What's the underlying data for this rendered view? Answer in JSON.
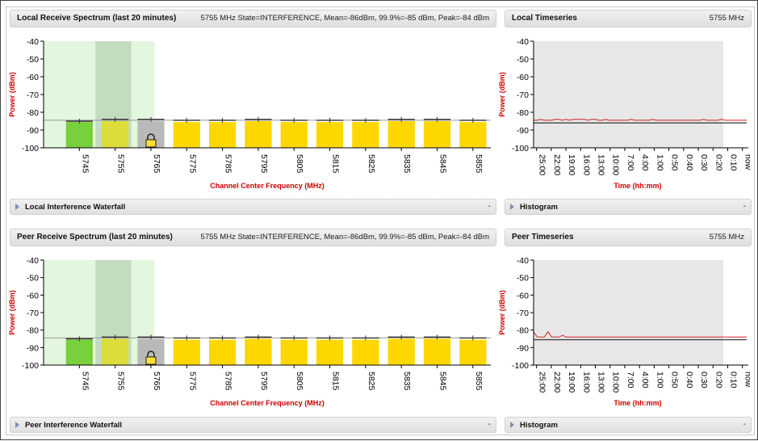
{
  "local": {
    "spectrum": {
      "title": "Local Receive Spectrum (last 20 minutes)",
      "stats": "5755 MHz State=INTERFERENCE, Mean=-86dBm, 99.9%=-85 dBm, Peak=-84 dBm"
    },
    "timeseries": {
      "title": "Local Timeseries",
      "freq": "5755 MHz"
    },
    "waterfall": {
      "label": "Local Interference Waterfall",
      "toggle": "-"
    },
    "histogram": {
      "label": "Histogram",
      "toggle": "-"
    }
  },
  "peer": {
    "spectrum": {
      "title": "Peer Receive Spectrum (last 20 minutes)",
      "stats": "5755 MHz State=INTERFERENCE, Mean=-86dBm, 99.9%=-85 dBm, Peak=-84 dBm"
    },
    "timeseries": {
      "title": "Peer Timeseries",
      "freq": "5755 MHz"
    },
    "waterfall": {
      "label": "Peer Interference Waterfall",
      "toggle": "-"
    },
    "histogram": {
      "label": "Histogram",
      "toggle": "-"
    }
  },
  "chart_data": [
    {
      "type": "bar",
      "id": "local-spectrum",
      "xlabel": "Channel Center Frequency (MHz)",
      "ylabel": "Power (dBm)",
      "ylim": [
        -100,
        -40
      ],
      "yticks": [
        -40,
        -50,
        -60,
        -70,
        -80,
        -90,
        -100
      ],
      "categories": [
        "5745",
        "5755",
        "5765",
        "5775",
        "5785",
        "5795",
        "5805",
        "5815",
        "5825",
        "5835",
        "5845",
        "5855"
      ],
      "values": [
        -85.5,
        -85,
        -85,
        -85.5,
        -85.5,
        -85,
        -85.5,
        -85.5,
        -85.5,
        -85,
        -85,
        -85.5
      ],
      "peaks": [
        -85,
        -84,
        -84,
        -84.5,
        -84.5,
        -84,
        -84.5,
        -84.5,
        -84.5,
        -84,
        -84,
        -84.5
      ],
      "bar_colors": [
        "#79d03c",
        "#dcdc3a",
        "#b9b9b9",
        "#ffd700",
        "#ffd700",
        "#ffd700",
        "#ffd700",
        "#ffd700",
        "#ffd700",
        "#ffd700",
        "#ffd700",
        "#ffd700"
      ],
      "locked_category": "5765",
      "threshold": -84.5
    },
    {
      "type": "line",
      "id": "local-timeseries",
      "xlabel": "Time (hh:mm)",
      "ylabel": "Power (dBm)",
      "ylim": [
        -100,
        -40
      ],
      "yticks": [
        -40,
        -50,
        -60,
        -70,
        -80,
        -90,
        -100
      ],
      "xticks": [
        "25:00",
        "22:00",
        "19:00",
        "16:00",
        "13:00",
        "10:00",
        "7:00",
        "4:00",
        "1:00",
        "0:50",
        "0:40",
        "0:30",
        "0:20",
        "0:10",
        "now"
      ],
      "series": [
        {
          "values": [
            -84.5,
            -84.5,
            -84,
            -84.5,
            -84.5,
            -84.5,
            -84,
            -84,
            -84.5,
            -84,
            -84.5,
            -84,
            -84,
            -84,
            -84,
            -84.5,
            -84,
            -84,
            -84.5,
            -84.5,
            -84,
            -84.5,
            -84.5,
            -84.5,
            -84.5,
            -84.5,
            -84.5,
            -84,
            -84.5,
            -84.5,
            -84.5,
            -84.5,
            -84.5,
            -84,
            -84.5,
            -84.5,
            -84.5,
            -84.5,
            -84.5,
            -84.5,
            -84.5,
            -84.5,
            -84.5,
            -84.5,
            -84.5,
            -84.5,
            -84.5,
            -84,
            -84.5,
            -84.5,
            -84.5,
            -84.5,
            -84,
            -84.5,
            -84.5,
            -84.5,
            -84.5,
            -84.5,
            -84.5,
            -84.5
          ],
          "color": "#cc2222"
        },
        {
          "values": [
            -86,
            -86,
            -86,
            -86,
            -86,
            -86,
            -86,
            -86,
            -86,
            -86,
            -86,
            -86,
            -86,
            -86,
            -86,
            -86,
            -86,
            -86,
            -86,
            -86,
            -86,
            -86,
            -86,
            -86,
            -86,
            -86,
            -86,
            -86,
            -86,
            -86,
            -86,
            -86,
            -86,
            -86,
            -86,
            -86,
            -86,
            -86,
            -86,
            -86,
            -86,
            -86,
            -86,
            -86,
            -86,
            -86,
            -86,
            -86,
            -86,
            -86,
            -86,
            -86,
            -86,
            -86,
            -86,
            -86,
            -86,
            -86,
            -86,
            -86
          ],
          "color": "#444444"
        }
      ]
    },
    {
      "type": "bar",
      "id": "peer-spectrum",
      "xlabel": "Channel Center Frequency (MHz)",
      "ylabel": "Power (dBm)",
      "ylim": [
        -100,
        -40
      ],
      "yticks": [
        -40,
        -50,
        -60,
        -70,
        -80,
        -90,
        -100
      ],
      "categories": [
        "5745",
        "5755",
        "5765",
        "5775",
        "5785",
        "5795",
        "5805",
        "5815",
        "5825",
        "5835",
        "5845",
        "5855"
      ],
      "values": [
        -85.5,
        -85,
        -85,
        -85.5,
        -85.5,
        -85,
        -85.5,
        -85.5,
        -85.5,
        -85,
        -85,
        -85.5
      ],
      "peaks": [
        -85,
        -84,
        -84,
        -84.5,
        -84.5,
        -84,
        -84.5,
        -84.5,
        -84.5,
        -84,
        -84,
        -84.5
      ],
      "bar_colors": [
        "#79d03c",
        "#dcdc3a",
        "#b9b9b9",
        "#ffd700",
        "#ffd700",
        "#ffd700",
        "#ffd700",
        "#ffd700",
        "#ffd700",
        "#ffd700",
        "#ffd700",
        "#ffd700"
      ],
      "locked_category": "5765",
      "threshold": -84.5
    },
    {
      "type": "line",
      "id": "peer-timeseries",
      "xlabel": "Time (hh:mm)",
      "ylabel": "Power (dBm)",
      "ylim": [
        -100,
        -40
      ],
      "yticks": [
        -40,
        -50,
        -60,
        -70,
        -80,
        -90,
        -100
      ],
      "xticks": [
        "25:00",
        "22:00",
        "19:00",
        "16:00",
        "13:00",
        "10:00",
        "7:00",
        "4:00",
        "1:00",
        "0:50",
        "0:40",
        "0:30",
        "0:20",
        "0:10",
        "now"
      ],
      "series": [
        {
          "values": [
            -81,
            -84,
            -84,
            -84,
            -81,
            -84,
            -84,
            -84,
            -83,
            -84,
            -84,
            -84,
            -84,
            -84,
            -84,
            -84,
            -84,
            -84,
            -84,
            -84,
            -84,
            -84,
            -84,
            -84,
            -84,
            -84,
            -84,
            -84,
            -84,
            -84,
            -84,
            -84,
            -84,
            -84,
            -84,
            -84,
            -84,
            -84,
            -84,
            -84,
            -84,
            -84,
            -84,
            -84,
            -84,
            -84,
            -84,
            -84,
            -84,
            -84,
            -84,
            -84,
            -84,
            -84,
            -84,
            -84,
            -84,
            -84,
            -84,
            -84
          ],
          "color": "#cc2222"
        },
        {
          "values": [
            -85.5,
            -85.5,
            -85.5,
            -85.5,
            -85.5,
            -85.5,
            -85.5,
            -85.5,
            -85.5,
            -85.5,
            -85.5,
            -85.5,
            -85.5,
            -85.5,
            -85.5,
            -85.5,
            -85.5,
            -85.5,
            -85.5,
            -85.5,
            -85.5,
            -85.5,
            -85.5,
            -85.5,
            -85.5,
            -85.5,
            -85.5,
            -85.5,
            -85.5,
            -85.5,
            -85.5,
            -85.5,
            -85.5,
            -85.5,
            -85.5,
            -85.5,
            -85.5,
            -85.5,
            -85.5,
            -85.5,
            -85.5,
            -85.5,
            -85.5,
            -85.5,
            -85.5,
            -85.5,
            -85.5,
            -85.5,
            -85.5,
            -85.5,
            -85.5,
            -85.5,
            -85.5,
            -85.5,
            -85.5,
            -85.5,
            -85.5,
            -85.5,
            -85.5,
            -85.5
          ],
          "color": "#444444"
        }
      ]
    }
  ]
}
